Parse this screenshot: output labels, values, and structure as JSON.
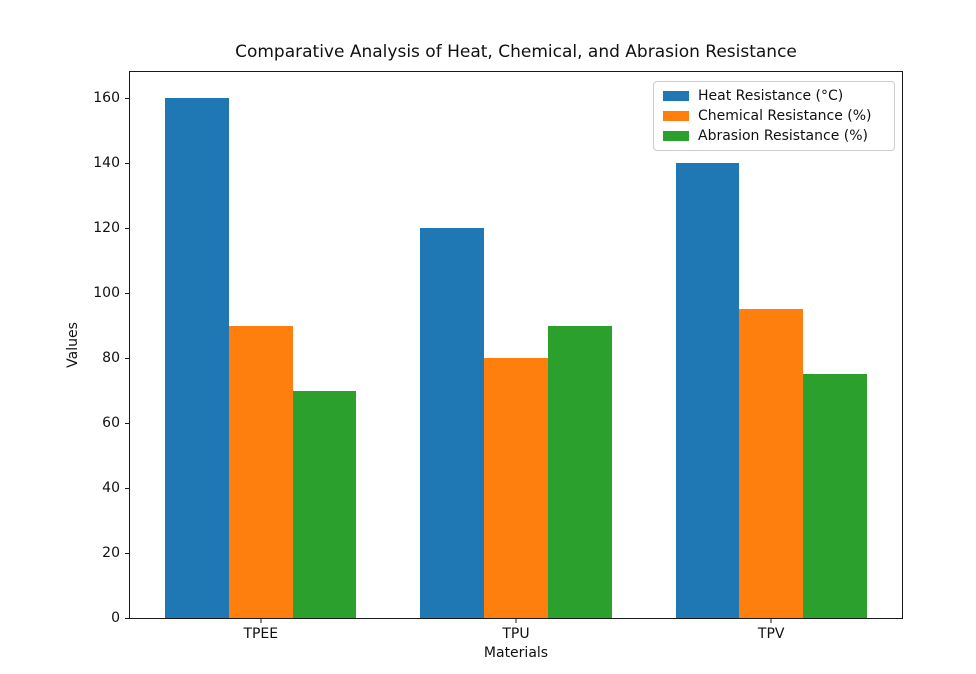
{
  "chart_data": {
    "type": "bar",
    "title": "Comparative Analysis of Heat, Chemical, and Abrasion Resistance",
    "xlabel": "Materials",
    "ylabel": "Values",
    "categories": [
      "TPEE",
      "TPU",
      "TPV"
    ],
    "series": [
      {
        "name": "Heat Resistance (°C)",
        "color": "#1f77b4",
        "values": [
          160,
          120,
          140
        ]
      },
      {
        "name": "Chemical Resistance (%)",
        "color": "#ff7f0e",
        "values": [
          90,
          80,
          95
        ]
      },
      {
        "name": "Abrasion Resistance (%)",
        "color": "#2ca02c",
        "values": [
          70,
          90,
          75
        ]
      }
    ],
    "ylim": [
      0,
      168
    ],
    "yticks": [
      0,
      20,
      40,
      60,
      80,
      100,
      120,
      140,
      160
    ],
    "xlim": [
      -0.5125,
      2.5125
    ],
    "bar_width": 0.25,
    "grid": false,
    "legend_position": "upper right",
    "colors": {
      "background": "#ffffff",
      "text": "#111111",
      "spine": "#1a1a1a",
      "legend_border": "#cccccc"
    }
  }
}
